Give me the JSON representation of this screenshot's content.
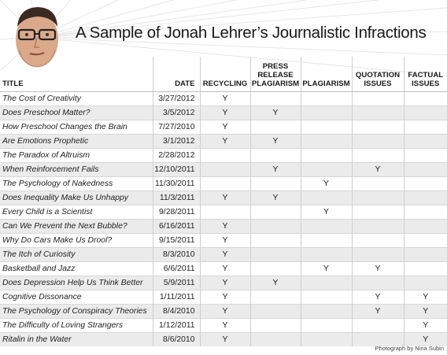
{
  "title": "A Sample of Jonah Lehrer’s Journalistic Infractions",
  "columns": {
    "title": "Title",
    "date": "Date",
    "recycling": "Recycling",
    "press_release_lines": [
      "Press",
      "Release",
      "Plagiarism"
    ],
    "plagiarism": "Plagiarism",
    "quotation_lines": [
      "Quotation",
      "Issues"
    ],
    "factual_lines": [
      "Factual",
      "Issues"
    ]
  },
  "rows": [
    {
      "title": "The Cost of Creativity",
      "date": "3/27/2012",
      "recycling": "Y",
      "press_release": "",
      "plagiarism": "",
      "quotation": "",
      "factual": ""
    },
    {
      "title": "Does Preschool Matter?",
      "date": "3/5/2012",
      "recycling": "Y",
      "press_release": "Y",
      "plagiarism": "",
      "quotation": "",
      "factual": ""
    },
    {
      "title": "How Preschool Changes the Brain",
      "date": "7/27/2010",
      "recycling": "Y",
      "press_release": "",
      "plagiarism": "",
      "quotation": "",
      "factual": ""
    },
    {
      "title": "Are Emotions Prophetic",
      "date": "3/1/2012",
      "recycling": "Y",
      "press_release": "Y",
      "plagiarism": "",
      "quotation": "",
      "factual": ""
    },
    {
      "title": "The Paradox of Altruism",
      "date": "2/28/2012",
      "recycling": "",
      "press_release": "",
      "plagiarism": "",
      "quotation": "",
      "factual": ""
    },
    {
      "title": "When Reinforcement Fails",
      "date": "12/10/2011",
      "recycling": "",
      "press_release": "Y",
      "plagiarism": "",
      "quotation": "Y",
      "factual": ""
    },
    {
      "title": "The Psychology of Nakedness",
      "date": "11/30/2011",
      "recycling": "",
      "press_release": "",
      "plagiarism": "Y",
      "quotation": "",
      "factual": ""
    },
    {
      "title": "Does Inequality Make Us Unhappy",
      "date": "11/3/2011",
      "recycling": "Y",
      "press_release": "Y",
      "plagiarism": "",
      "quotation": "",
      "factual": ""
    },
    {
      "title": "Every Child is a Scientist",
      "date": "9/28/2011",
      "recycling": "",
      "press_release": "",
      "plagiarism": "Y",
      "quotation": "",
      "factual": ""
    },
    {
      "title": "Can We Prevent the Next Bubble?",
      "date": "6/16/2011",
      "recycling": "Y",
      "press_release": "",
      "plagiarism": "",
      "quotation": "",
      "factual": ""
    },
    {
      "title": "Why Do Cars Make Us Drool?",
      "date": "9/15/2011",
      "recycling": "Y",
      "press_release": "",
      "plagiarism": "",
      "quotation": "",
      "factual": ""
    },
    {
      "title": "The Itch of Curiosity",
      "date": "8/3/2010",
      "recycling": "Y",
      "press_release": "",
      "plagiarism": "",
      "quotation": "",
      "factual": ""
    },
    {
      "title": "Basketball and Jazz",
      "date": "6/6/2011",
      "recycling": "Y",
      "press_release": "",
      "plagiarism": "Y",
      "quotation": "Y",
      "factual": ""
    },
    {
      "title": "Does Depression Help Us Think Better",
      "date": "5/9/2011",
      "recycling": "Y",
      "press_release": "Y",
      "plagiarism": "",
      "quotation": "",
      "factual": ""
    },
    {
      "title": "Cognitive Dissonance",
      "date": "1/11/2011",
      "recycling": "Y",
      "press_release": "",
      "plagiarism": "",
      "quotation": "Y",
      "factual": "Y"
    },
    {
      "title": "The Psychology of Conspiracy Theories",
      "date": "8/4/2010",
      "recycling": "Y",
      "press_release": "",
      "plagiarism": "",
      "quotation": "Y",
      "factual": "Y"
    },
    {
      "title": "The Difficulty of Loving Strangers",
      "date": "1/12/2011",
      "recycling": "Y",
      "press_release": "",
      "plagiarism": "",
      "quotation": "",
      "factual": "Y"
    },
    {
      "title": "Ritalin in the Water",
      "date": "8/6/2010",
      "recycling": "Y",
      "press_release": "",
      "plagiarism": "",
      "quotation": "",
      "factual": "Y"
    }
  ],
  "credit": "Photograph by Nina Subin",
  "colors": {
    "alt_row": "#ebebeb",
    "rule": "#cfcfcf"
  },
  "icons": {
    "avatar": "portrait-photo"
  }
}
